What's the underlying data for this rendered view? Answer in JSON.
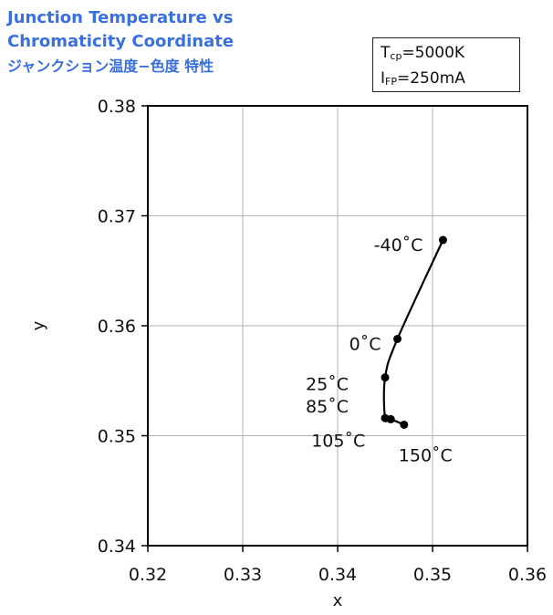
{
  "title": {
    "line1": "Junction Temperature vs",
    "line2": "Chromaticity Coordinate",
    "line3": "ジャンクション温度−色度 特性"
  },
  "conditions": {
    "tcp_symbol": "T",
    "tcp_sub": "cp",
    "tcp_value": "=5000K",
    "ifp_symbol": "I",
    "ifp_sub": "FP",
    "ifp_value": "=250mA"
  },
  "chart_data": {
    "type": "scatter",
    "xlabel": "x",
    "ylabel": "y",
    "xlim": [
      0.32,
      0.36
    ],
    "ylim": [
      0.34,
      0.38
    ],
    "xticks": [
      "0.32",
      "0.33",
      "0.34",
      "0.35",
      "0.36"
    ],
    "yticks": [
      "0.34",
      "0.35",
      "0.36",
      "0.37",
      "0.38"
    ],
    "grid": true,
    "series": [
      {
        "points": [
          {
            "x": 0.3511,
            "y": 0.3678,
            "label": "-40˚C"
          },
          {
            "x": 0.3463,
            "y": 0.3588,
            "label": "0˚C"
          },
          {
            "x": 0.345,
            "y": 0.3553,
            "label": "25˚C"
          },
          {
            "x": 0.345,
            "y": 0.3516,
            "label": "85˚C"
          },
          {
            "x": 0.3456,
            "y": 0.3515,
            "label": "105˚C"
          },
          {
            "x": 0.347,
            "y": 0.351,
            "label": "150˚C"
          }
        ]
      }
    ]
  }
}
